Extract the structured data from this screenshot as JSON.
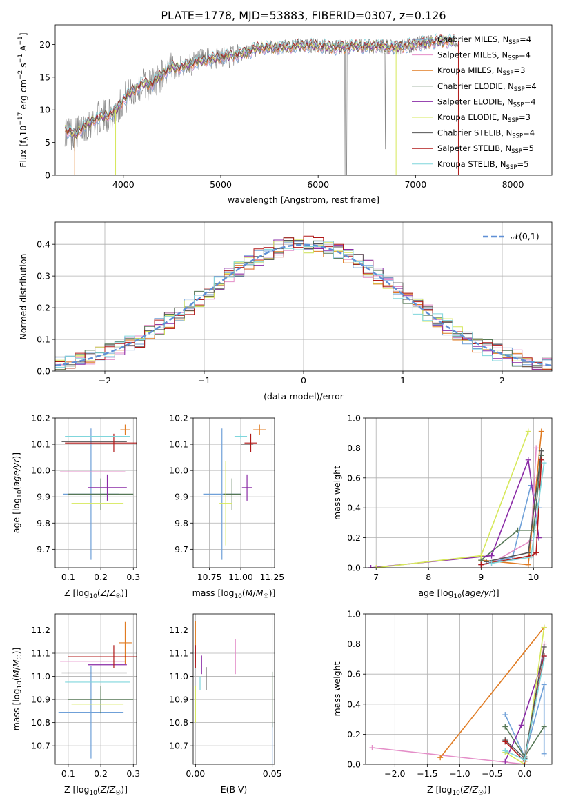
{
  "title": "PLATE=1778, MJD=53883, FIBERID=0307, z=0.126",
  "colors": {
    "chabrier_miles": "#6fa0d8",
    "salpeter_miles": "#e48ec8",
    "kroupa_miles": "#e07b22",
    "chabrier_elodie": "#557755",
    "salpeter_elodie": "#8a2ba6",
    "kroupa_elodie": "#d6e85a",
    "chabrier_stelib": "#555555",
    "salpeter_stelib": "#b01818",
    "kroupa_stelib": "#7fd6dc",
    "data": "#8a8a8a",
    "normal": "#5f8fd6"
  },
  "chart_data": [
    {
      "type": "line",
      "panel": "spectrum",
      "xlabel": "wavelength [Angstrom, rest frame]",
      "ylabel": "Flux [f_λ 10^-17 erg cm^-2 s^-1 A^-1]",
      "xlim": [
        3300,
        8400
      ],
      "ylim": [
        0,
        23
      ],
      "xticks": [
        4000,
        5000,
        6000,
        7000,
        8000
      ],
      "yticks": [
        0,
        5,
        10,
        15,
        20
      ],
      "legend_position": "right",
      "legend": [
        {
          "base": "Chabrier MILES, N",
          "sub": "SSP",
          "tail": "=4",
          "key": "chabrier_miles"
        },
        {
          "base": "Salpeter MILES, N",
          "sub": "SSP",
          "tail": "=4",
          "key": "salpeter_miles"
        },
        {
          "base": "Kroupa MILES, N",
          "sub": "SSP",
          "tail": "=3",
          "key": "kroupa_miles"
        },
        {
          "base": "Chabrier ELODIE, N",
          "sub": "SSP",
          "tail": "=4",
          "key": "chabrier_elodie"
        },
        {
          "base": "Salpeter ELODIE, N",
          "sub": "SSP",
          "tail": "=4",
          "key": "salpeter_elodie"
        },
        {
          "base": "Kroupa ELODIE, N",
          "sub": "SSP",
          "tail": "=3",
          "key": "kroupa_elodie"
        },
        {
          "base": "Chabrier STELIB, N",
          "sub": "SSP",
          "tail": "=4",
          "key": "chabrier_stelib"
        },
        {
          "base": "Salpeter STELIB, N",
          "sub": "SSP",
          "tail": "=5",
          "key": "salpeter_stelib"
        },
        {
          "base": "Kroupa STELIB, N",
          "sub": "SSP",
          "tail": "=5",
          "key": "kroupa_stelib"
        }
      ],
      "continuum": {
        "x": [
          3400,
          3500,
          3600,
          3700,
          3800,
          3900,
          4000,
          4100,
          4200,
          4300,
          4400,
          4500,
          4600,
          4800,
          5000,
          5200,
          5400,
          5600,
          5800,
          6000,
          6200,
          6400,
          6600,
          6800,
          7000,
          7200,
          7400
        ],
        "y": [
          7.0,
          6.2,
          7.5,
          8.5,
          9.0,
          9.5,
          11.5,
          13.0,
          14.0,
          14.0,
          15.5,
          16.5,
          16.5,
          17.5,
          18.0,
          18.5,
          19.5,
          19.5,
          19.8,
          19.8,
          19.5,
          19.7,
          19.8,
          19.5,
          20.0,
          20.5,
          20.5
        ]
      },
      "model_range": [
        3400,
        7400
      ],
      "data_range": [
        3400,
        7450
      ]
    },
    {
      "type": "step",
      "panel": "residuals",
      "xlabel": "(data-model)/error",
      "ylabel": "Normed distribution",
      "xlim": [
        -2.5,
        2.5
      ],
      "ylim": [
        0,
        0.47
      ],
      "xticks": [
        -2,
        -1,
        0,
        1,
        2
      ],
      "yticks": [
        0.0,
        0.1,
        0.2,
        0.3,
        0.4
      ],
      "legend": "𝒩(0,1)",
      "legend_position": "top-right",
      "bin_width": 0.1
    },
    {
      "type": "scatter",
      "panel": "age-vs-Z",
      "xlabel": "Z [log10(Z/Z☉)]",
      "ylabel": "age [log10(age/yr)]",
      "xlim": [
        0.06,
        0.31
      ],
      "ylim": [
        9.63,
        10.2
      ],
      "xticks": [
        0.1,
        0.2,
        0.3
      ],
      "yticks": [
        9.7,
        9.8,
        9.9,
        10.0,
        10.1,
        10.2
      ],
      "points": [
        {
          "key": "chabrier_miles",
          "x": 0.17,
          "xerr": 0.085,
          "y": 9.91,
          "yerr": 0.25
        },
        {
          "key": "salpeter_miles",
          "x": 0.175,
          "xerr": 0.1,
          "y": 9.995,
          "yerr": 0.0
        },
        {
          "key": "kroupa_miles",
          "x": 0.275,
          "xerr": 0.015,
          "y": 10.155,
          "yerr": 0.02
        },
        {
          "key": "chabrier_elodie",
          "x": 0.2,
          "xerr": 0.1,
          "y": 9.91,
          "yerr": 0.06
        },
        {
          "key": "salpeter_elodie",
          "x": 0.22,
          "xerr": 0.06,
          "y": 9.935,
          "yerr": 0.05
        },
        {
          "key": "kroupa_elodie",
          "x": 0.19,
          "xerr": 0.08,
          "y": 9.875,
          "yerr": 0.0
        },
        {
          "key": "chabrier_stelib",
          "x": 0.18,
          "xerr": 0.1,
          "y": 10.11,
          "yerr": 0.0
        },
        {
          "key": "salpeter_stelib",
          "x": 0.24,
          "xerr": 0.15,
          "y": 10.105,
          "yerr": 0.035
        },
        {
          "key": "kroupa_stelib",
          "x": 0.19,
          "xerr": 0.1,
          "y": 10.13,
          "yerr": 0.0
        }
      ]
    },
    {
      "type": "scatter",
      "panel": "age-vs-mass",
      "xlabel": "mass [log10(M/M☉)]",
      "ylabel": "",
      "xlim": [
        10.62,
        11.27
      ],
      "ylim": [
        9.63,
        10.2
      ],
      "xticks": [
        10.75,
        11.0,
        11.25
      ],
      "xticklabels": [
        "10.75",
        "11.00",
        "11.25"
      ],
      "yticks": [
        9.7,
        9.8,
        9.9,
        10.0,
        10.1,
        10.2
      ],
      "points": [
        {
          "key": "chabrier_miles",
          "x": 10.85,
          "xerr": 0.15,
          "y": 9.91,
          "yerr": 0.25
        },
        {
          "key": "salpeter_miles",
          "x": 11.05,
          "xerr": 0.0,
          "y": 9.995,
          "yerr": 0.0
        },
        {
          "key": "kroupa_miles",
          "x": 11.15,
          "xerr": 0.05,
          "y": 10.155,
          "yerr": 0.02
        },
        {
          "key": "chabrier_elodie",
          "x": 10.93,
          "xerr": 0.07,
          "y": 9.91,
          "yerr": 0.06
        },
        {
          "key": "salpeter_elodie",
          "x": 11.05,
          "xerr": 0.04,
          "y": 9.935,
          "yerr": 0.05
        },
        {
          "key": "kroupa_elodie",
          "x": 10.88,
          "xerr": 0.05,
          "y": 9.875,
          "yerr": 0.16
        },
        {
          "key": "chabrier_stelib",
          "x": 11.05,
          "xerr": 0.05,
          "y": 10.1,
          "yerr": 0.0
        },
        {
          "key": "salpeter_stelib",
          "x": 11.08,
          "xerr": 0.05,
          "y": 10.105,
          "yerr": 0.035
        },
        {
          "key": "kroupa_stelib",
          "x": 11.0,
          "xerr": 0.05,
          "y": 10.13,
          "yerr": 0.01
        }
      ]
    },
    {
      "type": "line",
      "panel": "massweight-vs-age",
      "xlabel": "age [log10(age/yr)]",
      "ylabel": "mass weight",
      "xlim": [
        6.8,
        10.35
      ],
      "ylim": [
        0,
        1.0
      ],
      "xticks": [
        7,
        8,
        9,
        10
      ],
      "yticks": [
        0.0,
        0.2,
        0.4,
        0.6,
        0.8,
        1.0
      ],
      "series": [
        {
          "key": "chabrier_miles",
          "x": [
            9.0,
            9.6,
            9.95,
            10.1
          ],
          "y": [
            0.02,
            0.07,
            0.55,
            0.4
          ]
        },
        {
          "key": "salpeter_miles",
          "x": [
            9.2,
            9.95,
            10.05
          ],
          "y": [
            0.03,
            0.18,
            0.8
          ]
        },
        {
          "key": "kroupa_miles",
          "x": [
            9.0,
            9.9,
            10.15
          ],
          "y": [
            0.05,
            0.02,
            0.91
          ]
        },
        {
          "key": "chabrier_elodie",
          "x": [
            9.0,
            9.7,
            10.0,
            10.15
          ],
          "y": [
            0.05,
            0.25,
            0.25,
            0.75
          ]
        },
        {
          "key": "salpeter_elodie",
          "x": [
            6.9,
            9.2,
            9.9,
            10.1
          ],
          "y": [
            0.0,
            0.08,
            0.72,
            0.2
          ]
        },
        {
          "key": "kroupa_elodie",
          "x": [
            7.0,
            9.0,
            9.9
          ],
          "y": [
            0.0,
            0.08,
            0.91
          ]
        },
        {
          "key": "chabrier_stelib",
          "x": [
            9.1,
            9.9,
            10.15
          ],
          "y": [
            0.04,
            0.1,
            0.78
          ]
        },
        {
          "key": "salpeter_stelib",
          "x": [
            9.0,
            9.95,
            10.05,
            10.15
          ],
          "y": [
            0.02,
            0.08,
            0.1,
            0.72
          ]
        },
        {
          "key": "kroupa_stelib",
          "x": [
            9.2,
            9.95,
            10.2
          ],
          "y": [
            0.03,
            0.07,
            0.7
          ]
        }
      ]
    },
    {
      "type": "scatter",
      "panel": "mass-vs-Z",
      "xlabel": "Z [log10(Z/Z☉)]",
      "ylabel": "mass [log10(M/M☉)]",
      "xlim": [
        0.06,
        0.31
      ],
      "ylim": [
        10.62,
        11.27
      ],
      "xticks": [
        0.1,
        0.2,
        0.3
      ],
      "yticks": [
        10.7,
        10.8,
        10.9,
        11.0,
        11.1,
        11.2
      ],
      "points": [
        {
          "key": "chabrier_miles",
          "x": 0.17,
          "xerr": 0.1,
          "y": 10.845,
          "yerr": 0.2
        },
        {
          "key": "salpeter_miles",
          "x": 0.175,
          "xerr": 0.1,
          "y": 11.065,
          "yerr": 0.0
        },
        {
          "key": "kroupa_miles",
          "x": 0.275,
          "xerr": 0.02,
          "y": 11.145,
          "yerr": 0.09
        },
        {
          "key": "chabrier_elodie",
          "x": 0.2,
          "xerr": 0.1,
          "y": 10.9,
          "yerr": 0.06
        },
        {
          "key": "salpeter_elodie",
          "x": 0.22,
          "xerr": 0.06,
          "y": 11.05,
          "yerr": 0.0
        },
        {
          "key": "kroupa_elodie",
          "x": 0.19,
          "xerr": 0.08,
          "y": 10.88,
          "yerr": 0.0
        },
        {
          "key": "chabrier_stelib",
          "x": 0.18,
          "xerr": 0.1,
          "y": 11.015,
          "yerr": 0.0
        },
        {
          "key": "salpeter_stelib",
          "x": 0.24,
          "xerr": 0.14,
          "y": 11.085,
          "yerr": 0.05
        },
        {
          "key": "kroupa_stelib",
          "x": 0.19,
          "xerr": 0.1,
          "y": 10.975,
          "yerr": 0.0
        }
      ]
    },
    {
      "type": "scatter",
      "panel": "mass-vs-EBV",
      "xlabel": "E(B-V)",
      "ylabel": "",
      "xlim": [
        -0.0015,
        0.0515
      ],
      "ylim": [
        10.62,
        11.27
      ],
      "xticks": [
        0.0,
        0.05
      ],
      "xticklabels": [
        "0.00",
        "0.05"
      ],
      "yticks": [
        10.7,
        10.8,
        10.9,
        11.0,
        11.1,
        11.2
      ],
      "points": [
        {
          "key": "chabrier_miles",
          "x": 0.05,
          "xerr": 0,
          "y": 10.7,
          "yerr": 0.1
        },
        {
          "key": "salpeter_miles",
          "x": 0.026,
          "xerr": 0,
          "y": 11.085,
          "yerr": 0.075
        },
        {
          "key": "kroupa_miles",
          "x": 0.0,
          "xerr": 0,
          "y": 11.15,
          "yerr": 0.09
        },
        {
          "key": "chabrier_elodie",
          "x": 0.05,
          "xerr": 0,
          "y": 10.9,
          "yerr": 0.12
        },
        {
          "key": "salpeter_elodie",
          "x": 0.004,
          "xerr": 0,
          "y": 11.05,
          "yerr": 0.04
        },
        {
          "key": "kroupa_elodie",
          "x": 0.0,
          "xerr": 0,
          "y": 10.88,
          "yerr": 0.08
        },
        {
          "key": "chabrier_stelib",
          "x": 0.007,
          "xerr": 0,
          "y": 10.99,
          "yerr": 0.05
        },
        {
          "key": "salpeter_stelib",
          "x": 0.0,
          "xerr": 0,
          "y": 11.085,
          "yerr": 0.05
        },
        {
          "key": "kroupa_stelib",
          "x": 0.003,
          "xerr": 0,
          "y": 10.97,
          "yerr": 0.03
        }
      ]
    },
    {
      "type": "line",
      "panel": "massweight-vs-Z",
      "xlabel": "Z [log10(Z/Z☉)]",
      "ylabel": "mass weight",
      "xlim": [
        -2.45,
        0.42
      ],
      "ylim": [
        0,
        1.0
      ],
      "xticks": [
        -2.0,
        -1.5,
        -1.0,
        -0.5,
        0.0
      ],
      "xticklabels": [
        "−2.0",
        "−1.5",
        "−1.0",
        "−0.5",
        "0.0"
      ],
      "yticks": [
        0.0,
        0.2,
        0.4,
        0.6,
        0.8,
        1.0
      ],
      "series": [
        {
          "key": "chabrier_miles",
          "x": [
            -0.3,
            0.0,
            0.3,
            0.3
          ],
          "y": [
            0.33,
            0.05,
            0.53,
            0.07
          ]
        },
        {
          "key": "salpeter_miles",
          "x": [
            -2.35,
            0.0,
            0.3
          ],
          "y": [
            0.11,
            0.0,
            0.8
          ]
        },
        {
          "key": "kroupa_miles",
          "x": [
            -1.3,
            0.3
          ],
          "y": [
            0.045,
            0.91
          ]
        },
        {
          "key": "chabrier_elodie",
          "x": [
            -0.3,
            0.0,
            0.3
          ],
          "y": [
            0.25,
            0.05,
            0.25
          ]
        },
        {
          "key": "salpeter_elodie",
          "x": [
            -0.3,
            -0.05,
            0.3
          ],
          "y": [
            0.02,
            0.26,
            0.72
          ]
        },
        {
          "key": "kroupa_elodie",
          "x": [
            -0.3,
            0.0,
            0.3
          ],
          "y": [
            0.08,
            0.0,
            0.91
          ]
        },
        {
          "key": "chabrier_stelib",
          "x": [
            -0.3,
            0.0,
            0.3
          ],
          "y": [
            0.16,
            0.04,
            0.78
          ]
        },
        {
          "key": "salpeter_stelib",
          "x": [
            -0.3,
            0.0,
            0.3
          ],
          "y": [
            0.15,
            0.02,
            0.72
          ]
        },
        {
          "key": "kroupa_stelib",
          "x": [
            -0.3,
            0.0,
            0.3
          ],
          "y": [
            0.09,
            0.03,
            0.7
          ]
        }
      ]
    }
  ]
}
